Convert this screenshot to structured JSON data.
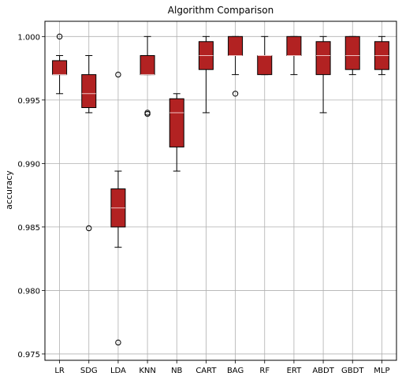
{
  "chart_data": {
    "type": "box",
    "title": "Algorithm Comparison",
    "xlabel": "",
    "ylabel": "accuracy",
    "ylim": [
      0.9745,
      1.0012
    ],
    "yticks": [
      0.975,
      0.98,
      0.985,
      0.99,
      0.995,
      1.0
    ],
    "ytick_labels": [
      "0.975",
      "0.980",
      "0.985",
      "0.990",
      "0.995",
      "1.000"
    ],
    "grid": true,
    "box_color": "#b22222",
    "median_color": "#f0c0c0",
    "categories": [
      "LR",
      "SDG",
      "LDA",
      "KNN",
      "NB",
      "CART",
      "BAG",
      "RF",
      "ERT",
      "ABDT",
      "GBDT",
      "MLP"
    ],
    "boxes": [
      {
        "label": "LR",
        "whislo": 0.9955,
        "q1": 0.997,
        "med": 0.997,
        "q3": 0.9981,
        "whishi": 0.9985,
        "fliers": [
          1.0
        ]
      },
      {
        "label": "SDG",
        "whislo": 0.994,
        "q1": 0.9944,
        "med": 0.9955,
        "q3": 0.997,
        "whishi": 0.9985,
        "fliers": [
          0.9849
        ]
      },
      {
        "label": "LDA",
        "whislo": 0.9834,
        "q1": 0.985,
        "med": 0.9865,
        "q3": 0.988,
        "whishi": 0.9894,
        "fliers": [
          0.997,
          0.9759
        ]
      },
      {
        "label": "KNN",
        "whislo": 0.997,
        "q1": 0.997,
        "med": 0.997,
        "q3": 0.9985,
        "whishi": 1.0,
        "fliers": [
          0.994,
          0.9939
        ]
      },
      {
        "label": "NB",
        "whislo": 0.9894,
        "q1": 0.9913,
        "med": 0.994,
        "q3": 0.9951,
        "whishi": 0.9955,
        "fliers": []
      },
      {
        "label": "CART",
        "whislo": 0.994,
        "q1": 0.9974,
        "med": 0.9985,
        "q3": 0.9996,
        "whishi": 1.0,
        "fliers": []
      },
      {
        "label": "BAG",
        "whislo": 0.997,
        "q1": 0.9985,
        "med": 0.9985,
        "q3": 1.0,
        "whishi": 1.0,
        "fliers": [
          0.9955
        ]
      },
      {
        "label": "RF",
        "whislo": 0.997,
        "q1": 0.997,
        "med": 0.9985,
        "q3": 0.9985,
        "whishi": 1.0,
        "fliers": []
      },
      {
        "label": "ERT",
        "whislo": 0.997,
        "q1": 0.9985,
        "med": 0.9985,
        "q3": 1.0,
        "whishi": 1.0,
        "fliers": []
      },
      {
        "label": "ABDT",
        "whislo": 0.994,
        "q1": 0.997,
        "med": 0.9985,
        "q3": 0.9996,
        "whishi": 1.0,
        "fliers": []
      },
      {
        "label": "GBDT",
        "whislo": 0.997,
        "q1": 0.9974,
        "med": 0.9985,
        "q3": 1.0,
        "whishi": 1.0,
        "fliers": []
      },
      {
        "label": "MLP",
        "whislo": 0.997,
        "q1": 0.9974,
        "med": 0.9985,
        "q3": 0.9996,
        "whishi": 1.0,
        "fliers": []
      }
    ]
  }
}
